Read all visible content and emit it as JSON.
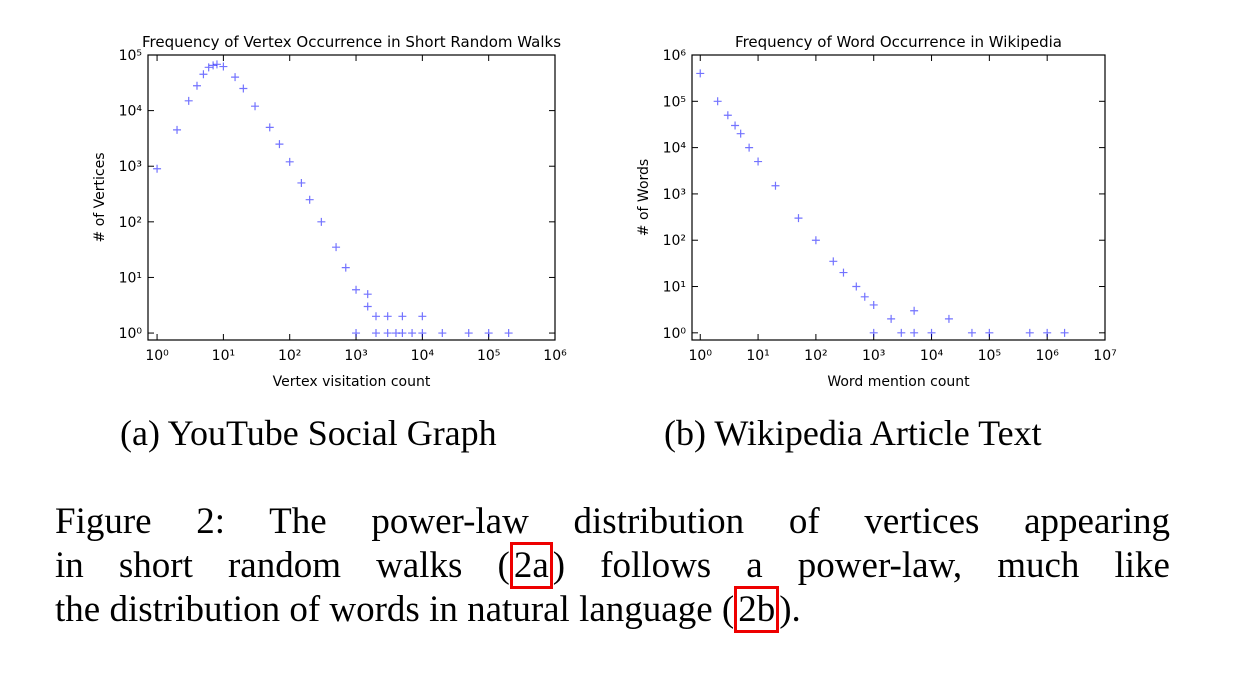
{
  "chart_data": [
    {
      "type": "scatter",
      "title": "Frequency of Vertex Occurrence in Short Random Walks",
      "x_label": "Vertex visitation count",
      "y_label": "# of Vertices",
      "x": [
        1,
        2,
        3,
        4,
        5,
        6,
        7,
        8,
        10,
        15,
        20,
        30,
        50,
        70,
        100,
        150,
        200,
        300,
        500,
        700,
        1000,
        1000,
        1500,
        2000,
        2000,
        3000,
        4000,
        5000,
        7000,
        10000,
        20000,
        50000,
        100000,
        200000,
        1500,
        3000,
        5000,
        10000
      ],
      "values": [
        900,
        4500,
        15000,
        28000,
        45000,
        60000,
        65000,
        68000,
        62000,
        40000,
        25000,
        12000,
        5000,
        2500,
        1200,
        500,
        250,
        100,
        35,
        15,
        6,
        1,
        3,
        2,
        1,
        1,
        1,
        1,
        1,
        1,
        1,
        1,
        1,
        1,
        5,
        2,
        2,
        2
      ],
      "color": "#0000ff",
      "log_x": true,
      "log_y": true,
      "xlim": [
        0.73,
        1000000
      ],
      "ylim": [
        0.75,
        100000
      ],
      "xticks": [
        {
          "value": 1,
          "label": "10⁰"
        },
        {
          "value": 10,
          "label": "10¹"
        },
        {
          "value": 100,
          "label": "10²"
        },
        {
          "value": 1000,
          "label": "10³"
        },
        {
          "value": 10000,
          "label": "10⁴"
        },
        {
          "value": 100000,
          "label": "10⁵"
        },
        {
          "value": 1000000,
          "label": "10⁶"
        }
      ],
      "yticks": [
        {
          "value": 1,
          "label": "10⁰"
        },
        {
          "value": 10,
          "label": "10¹"
        },
        {
          "value": 100,
          "label": "10²"
        },
        {
          "value": 1000,
          "label": "10³"
        },
        {
          "value": 10000,
          "label": "10⁴"
        },
        {
          "value": 100000,
          "label": "10⁵"
        }
      ]
    },
    {
      "type": "scatter",
      "title": "Frequency of Word Occurrence in Wikipedia",
      "x_label": "Word mention count",
      "y_label": "# of Words",
      "x": [
        1,
        2,
        3,
        4,
        5,
        7,
        10,
        20,
        50,
        100,
        200,
        500,
        1000,
        1000,
        2000,
        3000,
        5000,
        10000,
        50000,
        100000,
        500000,
        1000000,
        2000000,
        300,
        700,
        5000,
        20000
      ],
      "values": [
        400000,
        100000,
        50000,
        30000,
        20000,
        10000,
        5000,
        1500,
        300,
        100,
        35,
        10,
        4,
        1,
        2,
        1,
        1,
        1,
        1,
        1,
        1,
        1,
        1,
        20,
        6,
        3,
        2
      ],
      "color": "#0000ff",
      "log_x": true,
      "log_y": true,
      "xlim": [
        0.72,
        10000000
      ],
      "ylim": [
        0.7,
        1000000
      ],
      "xticks": [
        {
          "value": 1,
          "label": "10⁰"
        },
        {
          "value": 10,
          "label": "10¹"
        },
        {
          "value": 100,
          "label": "10²"
        },
        {
          "value": 1000,
          "label": "10³"
        },
        {
          "value": 10000,
          "label": "10⁴"
        },
        {
          "value": 100000,
          "label": "10⁵"
        },
        {
          "value": 1000000,
          "label": "10⁶"
        },
        {
          "value": 10000000,
          "label": "10⁷"
        }
      ],
      "yticks": [
        {
          "value": 1,
          "label": "10⁰"
        },
        {
          "value": 10,
          "label": "10¹"
        },
        {
          "value": 100,
          "label": "10²"
        },
        {
          "value": 1000,
          "label": "10³"
        },
        {
          "value": 10000,
          "label": "10⁴"
        },
        {
          "value": 100000,
          "label": "10⁵"
        },
        {
          "value": 1000000,
          "label": "10⁶"
        }
      ]
    }
  ],
  "subcaptions": [
    "(a) YouTube Social Graph",
    "(b) Wikipedia Article Text"
  ],
  "caption": {
    "lines": [
      [
        "Figure 2: The power-law distribution of vertices appearing"
      ],
      [
        "in short random walks (",
        "2a",
        ") follows a power-law, much like"
      ],
      [
        "the distribution of words in natural language (",
        "2b",
        ")."
      ]
    ]
  }
}
